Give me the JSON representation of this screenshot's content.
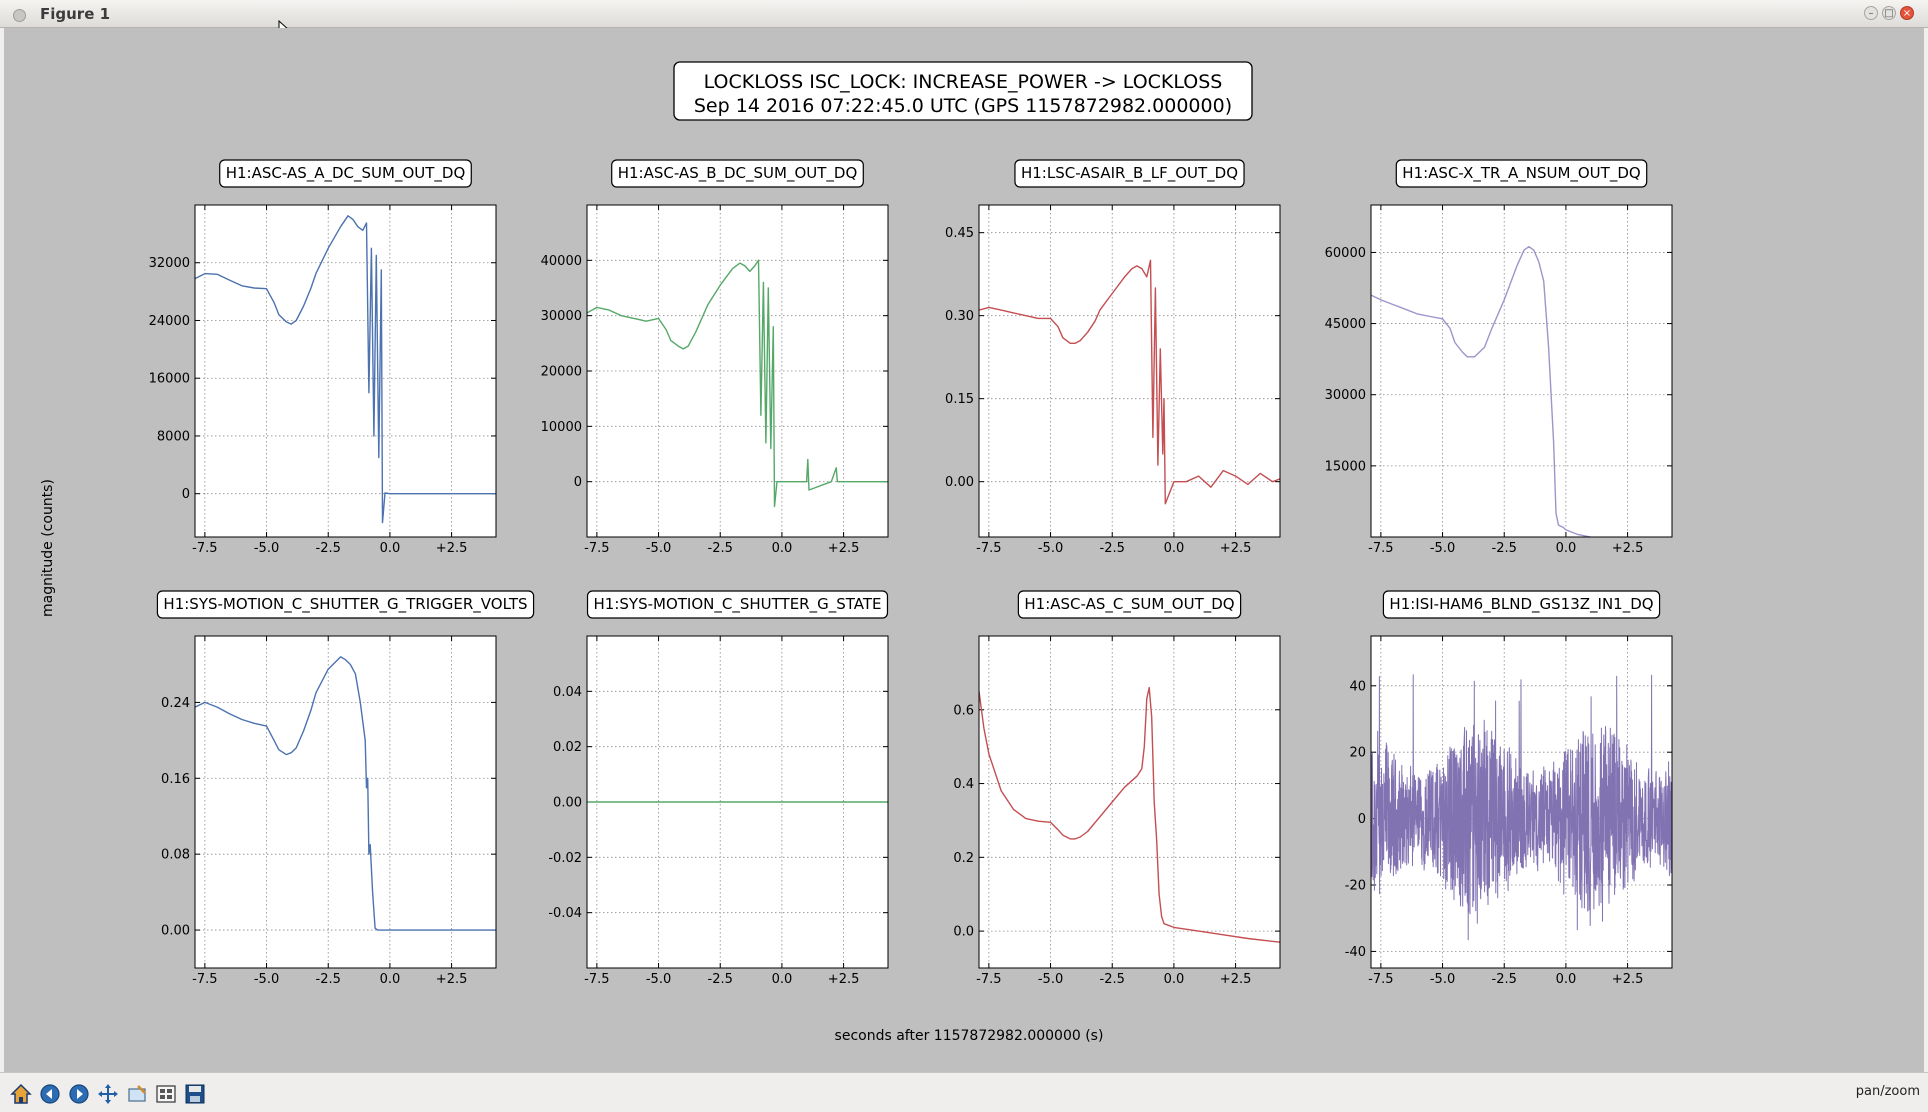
{
  "window": {
    "title": "Figure 1"
  },
  "figure": {
    "suptitle_line1": "LOCKLOSS ISC_LOCK: INCREASE_POWER -> LOCKLOSS",
    "suptitle_line2": "Sep 14 2016 07:22:45.0 UTC (GPS 1157872982.000000)",
    "ylabel": "magnitude (counts)",
    "xlabel": "seconds after 1157872982.000000 (s)"
  },
  "toolbar": {
    "buttons": [
      "home-icon",
      "back-arrow-icon",
      "forward-arrow-icon",
      "pan-icon",
      "zoom-icon",
      "subplots-icon",
      "save-icon"
    ],
    "mode": "pan/zoom"
  },
  "colors": {
    "blue": "#4c72b0",
    "green": "#55a868",
    "red": "#c44e52",
    "purple": "#8172b2",
    "lightpurple": "#9d95c9"
  },
  "chart_data": [
    {
      "type": "line",
      "title": "H1:ASC-AS_A_DC_SUM_OUT_DQ",
      "color": "blue",
      "xlim": [
        -7.9,
        4.3
      ],
      "ylim": [
        -6000,
        40000
      ],
      "xticks": [
        "-7.5",
        "-5.0",
        "-2.5",
        "0.0",
        "+2.5"
      ],
      "xtick_values": [
        -7.5,
        -5.0,
        -2.5,
        0.0,
        2.5
      ],
      "yticks": [
        "0",
        "8000",
        "16000",
        "24000",
        "32000"
      ],
      "ytick_values": [
        0,
        8000,
        16000,
        24000,
        32000
      ],
      "x": [
        -7.9,
        -7.5,
        -7.0,
        -6.5,
        -6.0,
        -5.5,
        -5.0,
        -4.7,
        -4.5,
        -4.2,
        -4.0,
        -3.8,
        -3.5,
        -3.2,
        -3.0,
        -2.5,
        -2.0,
        -1.7,
        -1.5,
        -1.3,
        -1.1,
        -0.95,
        -0.85,
        -0.75,
        -0.65,
        -0.55,
        -0.45,
        -0.35,
        -0.3,
        -0.2,
        0.0,
        1.0,
        2.0,
        3.0,
        4.3
      ],
      "y": [
        29800,
        30500,
        30400,
        29600,
        28800,
        28500,
        28400,
        26500,
        24800,
        23800,
        23500,
        24000,
        26000,
        28500,
        30500,
        34000,
        37000,
        38500,
        38000,
        37000,
        36500,
        37500,
        14000,
        34000,
        8000,
        33000,
        5000,
        31000,
        -4000,
        100,
        0,
        0,
        0,
        0,
        0
      ]
    },
    {
      "type": "line",
      "title": "H1:ASC-AS_B_DC_SUM_OUT_DQ",
      "color": "green",
      "xlim": [
        -7.9,
        4.3
      ],
      "ylim": [
        -10000,
        50000
      ],
      "xticks": [
        "-7.5",
        "-5.0",
        "-2.5",
        "0.0",
        "+2.5"
      ],
      "xtick_values": [
        -7.5,
        -5.0,
        -2.5,
        0.0,
        2.5
      ],
      "yticks": [
        "0",
        "10000",
        "20000",
        "30000",
        "40000"
      ],
      "ytick_values": [
        0,
        10000,
        20000,
        30000,
        40000
      ],
      "x": [
        -7.9,
        -7.5,
        -7.0,
        -6.5,
        -6.0,
        -5.5,
        -5.0,
        -4.7,
        -4.5,
        -4.2,
        -4.0,
        -3.8,
        -3.5,
        -3.2,
        -3.0,
        -2.5,
        -2.0,
        -1.7,
        -1.5,
        -1.3,
        -1.1,
        -0.95,
        -0.85,
        -0.75,
        -0.65,
        -0.55,
        -0.45,
        -0.35,
        -0.3,
        -0.2,
        0.0,
        1.0,
        1.05,
        1.1,
        2.0,
        2.2,
        2.25,
        3.0,
        4.3
      ],
      "y": [
        30500,
        31500,
        31000,
        30000,
        29500,
        29000,
        29500,
        27500,
        25500,
        24500,
        24000,
        24500,
        27000,
        30000,
        32000,
        35500,
        38500,
        39500,
        39000,
        38000,
        39000,
        40000,
        12000,
        36000,
        7000,
        35000,
        6000,
        28000,
        -4500,
        0,
        0,
        0,
        4000,
        -1500,
        0,
        2500,
        0,
        0,
        0
      ]
    },
    {
      "type": "line",
      "title": "H1:LSC-ASAIR_B_LF_OUT_DQ",
      "color": "red",
      "xlim": [
        -7.9,
        4.3
      ],
      "ylim": [
        -0.1,
        0.5
      ],
      "xticks": [
        "-7.5",
        "-5.0",
        "-2.5",
        "0.0",
        "+2.5"
      ],
      "xtick_values": [
        -7.5,
        -5.0,
        -2.5,
        0.0,
        2.5
      ],
      "yticks": [
        "0.00",
        "0.15",
        "0.30",
        "0.45"
      ],
      "ytick_values": [
        0.0,
        0.15,
        0.3,
        0.45
      ],
      "x": [
        -7.9,
        -7.5,
        -7.0,
        -6.5,
        -6.0,
        -5.5,
        -5.0,
        -4.7,
        -4.5,
        -4.2,
        -4.0,
        -3.8,
        -3.5,
        -3.2,
        -3.0,
        -2.5,
        -2.0,
        -1.7,
        -1.5,
        -1.3,
        -1.1,
        -0.95,
        -0.85,
        -0.75,
        -0.65,
        -0.55,
        -0.45,
        -0.4,
        -0.35,
        0.0,
        0.5,
        1.0,
        1.5,
        2.0,
        2.5,
        3.0,
        3.5,
        4.0,
        4.3
      ],
      "y": [
        0.31,
        0.315,
        0.31,
        0.305,
        0.3,
        0.295,
        0.295,
        0.28,
        0.26,
        0.25,
        0.25,
        0.255,
        0.27,
        0.29,
        0.31,
        0.34,
        0.37,
        0.385,
        0.39,
        0.385,
        0.37,
        0.4,
        0.08,
        0.35,
        0.03,
        0.24,
        0.05,
        0.15,
        -0.04,
        0.0,
        0.0,
        0.01,
        -0.01,
        0.02,
        0.01,
        -0.005,
        0.015,
        0.0,
        0.005
      ]
    },
    {
      "type": "line",
      "title": "H1:ASC-X_TR_A_NSUM_OUT_DQ",
      "color": "lightpurple",
      "xlim": [
        -7.9,
        4.3
      ],
      "ylim": [
        0,
        70000
      ],
      "xticks": [
        "-7.5",
        "-5.0",
        "-2.5",
        "0.0",
        "+2.5"
      ],
      "xtick_values": [
        -7.5,
        -5.0,
        -2.5,
        0.0,
        2.5
      ],
      "yticks": [
        "15000",
        "30000",
        "45000",
        "60000"
      ],
      "ytick_values": [
        15000,
        30000,
        45000,
        60000
      ],
      "x": [
        -7.9,
        -7.5,
        -7.0,
        -6.5,
        -6.0,
        -5.5,
        -5.0,
        -4.7,
        -4.5,
        -4.2,
        -4.0,
        -3.7,
        -3.3,
        -3.0,
        -2.5,
        -2.0,
        -1.7,
        -1.5,
        -1.3,
        -1.1,
        -0.9,
        -0.7,
        -0.5,
        -0.4,
        -0.3,
        -0.1,
        0.0,
        0.5,
        1.0
      ],
      "y": [
        51000,
        50000,
        49000,
        48000,
        47000,
        46500,
        46000,
        44000,
        41000,
        39000,
        38000,
        38000,
        40000,
        44000,
        50000,
        57000,
        60500,
        61200,
        60500,
        58000,
        54000,
        40000,
        20000,
        5000,
        2500,
        2000,
        1500,
        500,
        0
      ]
    },
    {
      "type": "line",
      "title": "H1:SYS-MOTION_C_SHUTTER_G_TRIGGER_VOLTS",
      "color": "blue",
      "xlim": [
        -7.9,
        4.3
      ],
      "ylim": [
        -0.04,
        0.31
      ],
      "xticks": [
        "-7.5",
        "-5.0",
        "-2.5",
        "0.0",
        "+2.5"
      ],
      "xtick_values": [
        -7.5,
        -5.0,
        -2.5,
        0.0,
        2.5
      ],
      "yticks": [
        "0.00",
        "0.08",
        "0.16",
        "0.24"
      ],
      "ytick_values": [
        0.0,
        0.08,
        0.16,
        0.24
      ],
      "x": [
        -7.9,
        -7.5,
        -7.0,
        -6.5,
        -6.0,
        -5.5,
        -5.0,
        -4.7,
        -4.5,
        -4.2,
        -4.0,
        -3.8,
        -3.5,
        -3.2,
        -3.0,
        -2.5,
        -2.0,
        -1.8,
        -1.6,
        -1.4,
        -1.2,
        -1.0,
        -0.95,
        -0.9,
        -0.85,
        -0.8,
        -0.7,
        -0.6,
        -0.5,
        0.0,
        1.0,
        2.0,
        3.0,
        4.3
      ],
      "y": [
        0.235,
        0.24,
        0.235,
        0.228,
        0.222,
        0.218,
        0.215,
        0.2,
        0.19,
        0.185,
        0.187,
        0.192,
        0.21,
        0.232,
        0.25,
        0.275,
        0.288,
        0.285,
        0.28,
        0.27,
        0.24,
        0.2,
        0.15,
        0.16,
        0.08,
        0.09,
        0.04,
        0.002,
        0.0,
        0.0,
        0.0,
        0.0,
        0.0,
        0.0
      ]
    },
    {
      "type": "line",
      "title": "H1:SYS-MOTION_C_SHUTTER_G_STATE",
      "color": "green",
      "xlim": [
        -7.9,
        4.3
      ],
      "ylim": [
        -0.06,
        0.06
      ],
      "xticks": [
        "-7.5",
        "-5.0",
        "-2.5",
        "0.0",
        "+2.5"
      ],
      "xtick_values": [
        -7.5,
        -5.0,
        -2.5,
        0.0,
        2.5
      ],
      "yticks": [
        "-0.04",
        "-0.02",
        "0.00",
        "0.02",
        "0.04"
      ],
      "ytick_values": [
        -0.04,
        -0.02,
        0.0,
        0.02,
        0.04
      ],
      "x": [
        -7.9,
        4.3
      ],
      "y": [
        0.0,
        0.0
      ]
    },
    {
      "type": "line",
      "title": "H1:ASC-AS_C_SUM_OUT_DQ",
      "color": "red",
      "xlim": [
        -7.9,
        4.3
      ],
      "ylim": [
        -0.1,
        0.8
      ],
      "xticks": [
        "-7.5",
        "-5.0",
        "-2.5",
        "0.0",
        "+2.5"
      ],
      "xtick_values": [
        -7.5,
        -5.0,
        -2.5,
        0.0,
        2.5
      ],
      "yticks": [
        "0.0",
        "0.2",
        "0.4",
        "0.6"
      ],
      "ytick_values": [
        0.0,
        0.2,
        0.4,
        0.6
      ],
      "x": [
        -7.9,
        -7.7,
        -7.5,
        -7.2,
        -7.0,
        -6.5,
        -6.0,
        -5.5,
        -5.0,
        -4.7,
        -4.5,
        -4.2,
        -4.0,
        -3.8,
        -3.5,
        -3.0,
        -2.5,
        -2.0,
        -1.5,
        -1.3,
        -1.2,
        -1.1,
        -1.0,
        -0.9,
        -0.8,
        -0.7,
        -0.6,
        -0.5,
        -0.4,
        0.0,
        1.0,
        2.0,
        3.0,
        4.3
      ],
      "y": [
        0.65,
        0.55,
        0.48,
        0.42,
        0.38,
        0.33,
        0.305,
        0.298,
        0.295,
        0.275,
        0.26,
        0.25,
        0.25,
        0.255,
        0.27,
        0.31,
        0.35,
        0.39,
        0.42,
        0.44,
        0.5,
        0.63,
        0.66,
        0.58,
        0.35,
        0.25,
        0.1,
        0.04,
        0.02,
        0.01,
        0.0,
        -0.01,
        -0.02,
        -0.03
      ]
    },
    {
      "type": "line",
      "title": "H1:ISI-HAM6_BLND_GS13Z_IN1_DQ",
      "color": "purple",
      "xlim": [
        -7.9,
        4.3
      ],
      "ylim": [
        -45,
        55
      ],
      "xticks": [
        "-7.5",
        "-5.0",
        "-2.5",
        "0.0",
        "+2.5"
      ],
      "xtick_values": [
        -7.5,
        -5.0,
        -2.5,
        0.0,
        2.5
      ],
      "yticks": [
        "-40",
        "-20",
        "0",
        "20",
        "40"
      ],
      "ytick_values": [
        -40,
        -20,
        0,
        20,
        40
      ],
      "noise": true,
      "noise_range": [
        -38,
        44
      ]
    }
  ]
}
